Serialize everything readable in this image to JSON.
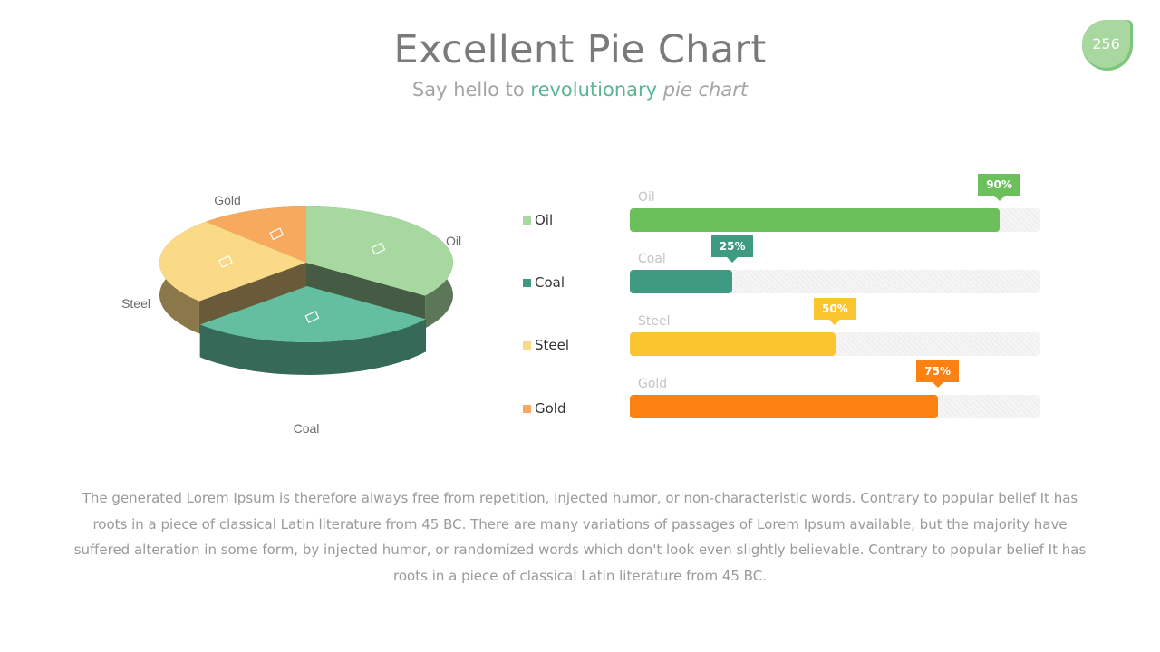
{
  "header": {
    "title": "Excellent Pie Chart",
    "subtitle_prefix": "Say hello to",
    "subtitle_accent": "revolutionary",
    "subtitle_italic": "pie chart",
    "page_number": "256"
  },
  "colors": {
    "oil": "#a7d8a0",
    "coal": "#63bf9f",
    "steel": "#fad987",
    "gold": "#f7aa5d",
    "bar_oil": "#6cc05c",
    "bar_coal": "#3e9b82",
    "bar_steel": "#fbc530",
    "bar_gold": "#fb8212"
  },
  "chart_data": [
    {
      "type": "pie",
      "categories": [
        "Oil",
        "Coal",
        "Steel",
        "Gold"
      ],
      "values": [
        35,
        28,
        25,
        12
      ]
    },
    {
      "type": "bar",
      "orientation": "horizontal",
      "categories": [
        "Oil",
        "Coal",
        "Steel",
        "Gold"
      ],
      "values": [
        90,
        25,
        50,
        75
      ],
      "value_labels": [
        "90%",
        "25%",
        "50%",
        "75%"
      ],
      "xlim": [
        0,
        100
      ]
    }
  ],
  "legend": [
    {
      "label": "Oil",
      "color": "#a7d8a0"
    },
    {
      "label": "Coal",
      "color": "#3e9b82"
    },
    {
      "label": "Steel",
      "color": "#fad987"
    },
    {
      "label": "Gold",
      "color": "#f7aa5d"
    }
  ],
  "body_text": "The generated Lorem Ipsum is therefore always free from repetition, injected humor, or non-characteristic words. Contrary to popular belief It has roots in a piece of classical Latin literature from 45 BC. There are many variations of passages of Lorem Ipsum available, but the majority have suffered alteration in some form, by injected humor, or randomized words which don't look even slightly believable. Contrary to popular belief It has roots in a piece of classical Latin literature from 45 BC."
}
